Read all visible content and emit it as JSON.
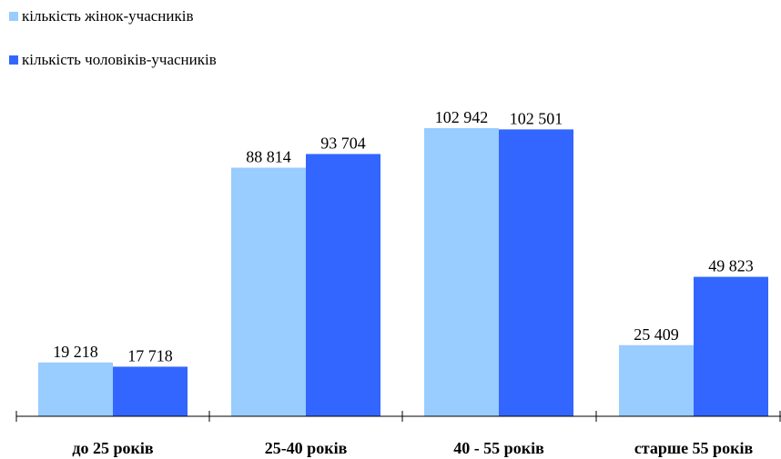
{
  "chart_data": {
    "type": "bar",
    "categories": [
      "до 25 років",
      "25-40 років",
      "40 - 55 років",
      "старше 55 років"
    ],
    "series": [
      {
        "name": "кількість жінок-учасників",
        "color": "#99ccff",
        "values": [
          19218,
          88814,
          102942,
          25409
        ],
        "labels": [
          "19 218",
          "88 814",
          "102 942",
          "25 409"
        ]
      },
      {
        "name": "кількість чоловіків-учасників",
        "color": "#3366ff",
        "values": [
          17718,
          93704,
          102501,
          49823
        ],
        "labels": [
          "17 718",
          "93 704",
          "102 501",
          "49 823"
        ]
      }
    ],
    "title": "",
    "xlabel": "",
    "ylabel": "",
    "ylim": [
      0,
      112000
    ],
    "grid": false,
    "legend_position": "top-left"
  }
}
